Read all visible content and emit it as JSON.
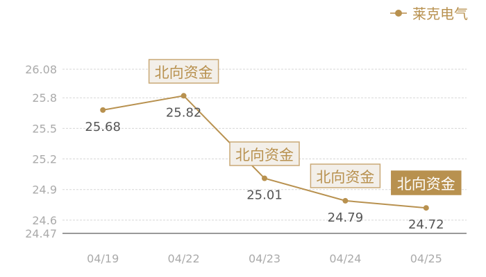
{
  "chart_data": {
    "type": "line",
    "categories": [
      "04/19",
      "04/22",
      "04/23",
      "04/24",
      "04/25"
    ],
    "series": [
      {
        "name": "莱克电气",
        "values": [
          25.68,
          25.82,
          25.01,
          24.79,
          24.72
        ],
        "color": "#b8914f"
      }
    ],
    "yticks": [
      24.47,
      24.6,
      24.9,
      25.2,
      25.5,
      25.8,
      26.08
    ],
    "ylim": [
      24.47,
      26.08
    ],
    "grid": true,
    "legend": "top-right",
    "annotations": [
      {
        "category": "04/22",
        "text": "北向资金",
        "style": "outline"
      },
      {
        "category": "04/23",
        "text": "北向资金",
        "style": "outline"
      },
      {
        "category": "04/24",
        "text": "北向资金",
        "style": "outline"
      },
      {
        "category": "04/25",
        "text": "北向资金",
        "style": "filled"
      }
    ]
  }
}
